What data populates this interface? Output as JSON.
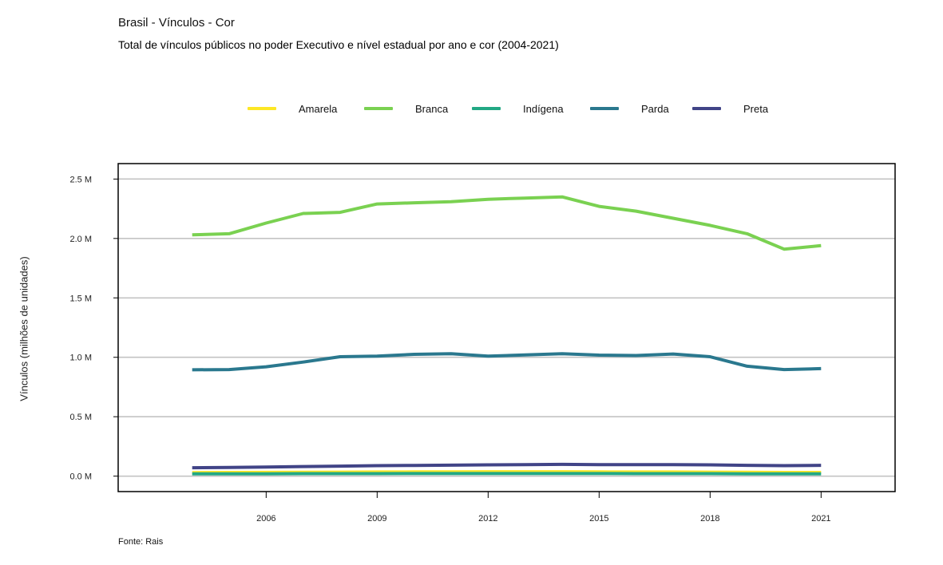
{
  "header": {
    "title": "Brasil - Vínculos - Cor",
    "subtitle": "Total de vínculos públicos no poder Executivo e nível estadual por ano e cor (2004-2021)"
  },
  "footer": {
    "source": "Fonte: Rais"
  },
  "chart_data": {
    "type": "line",
    "title": "Brasil - Vínculos - Cor",
    "subtitle": "Total de vínculos públicos no poder Executivo e nível estadual por ano e cor (2004-2021)",
    "xlabel": "",
    "ylabel": "Vínculos (milhões de unidades)",
    "x": [
      2004,
      2005,
      2006,
      2007,
      2008,
      2009,
      2010,
      2011,
      2012,
      2013,
      2014,
      2015,
      2016,
      2017,
      2018,
      2019,
      2020,
      2021
    ],
    "xticks": [
      2006,
      2009,
      2012,
      2015,
      2018,
      2021
    ],
    "xlim": [
      2002,
      2023
    ],
    "ylim": [
      -0.13,
      2.63
    ],
    "yticks": [
      0,
      0.5,
      1.0,
      1.5,
      2.0,
      2.5
    ],
    "ytick_labels": [
      "0.0 M",
      "0.5 M",
      "1.0 M",
      "1.5 M",
      "2.0 M",
      "2.5 M"
    ],
    "grid": "horizontal",
    "legend_position": "top",
    "series": [
      {
        "name": "Amarela",
        "color": "#FDE725",
        "values": [
          0.03,
          0.031,
          0.032,
          0.033,
          0.034,
          0.035,
          0.036,
          0.036,
          0.037,
          0.037,
          0.037,
          0.036,
          0.035,
          0.035,
          0.034,
          0.033,
          0.031,
          0.031
        ]
      },
      {
        "name": "Branca",
        "color": "#7AD151",
        "values": [
          2.03,
          2.04,
          2.13,
          2.21,
          2.22,
          2.29,
          2.3,
          2.31,
          2.33,
          2.34,
          2.35,
          2.27,
          2.23,
          2.17,
          2.11,
          2.04,
          1.91,
          1.94
        ]
      },
      {
        "name": "Indígena",
        "color": "#22A884",
        "values": [
          0.02,
          0.02,
          0.02,
          0.021,
          0.021,
          0.021,
          0.022,
          0.022,
          0.022,
          0.022,
          0.022,
          0.022,
          0.021,
          0.021,
          0.021,
          0.02,
          0.019,
          0.019
        ]
      },
      {
        "name": "Parda",
        "color": "#2A788E",
        "values": [
          0.895,
          0.897,
          0.92,
          0.96,
          1.005,
          1.01,
          1.025,
          1.03,
          1.01,
          1.02,
          1.03,
          1.018,
          1.015,
          1.028,
          1.005,
          0.925,
          0.897,
          0.905
        ]
      },
      {
        "name": "Preta",
        "color": "#414487",
        "values": [
          0.071,
          0.073,
          0.077,
          0.081,
          0.084,
          0.088,
          0.09,
          0.092,
          0.095,
          0.097,
          0.099,
          0.097,
          0.096,
          0.096,
          0.095,
          0.091,
          0.088,
          0.091
        ]
      }
    ]
  }
}
